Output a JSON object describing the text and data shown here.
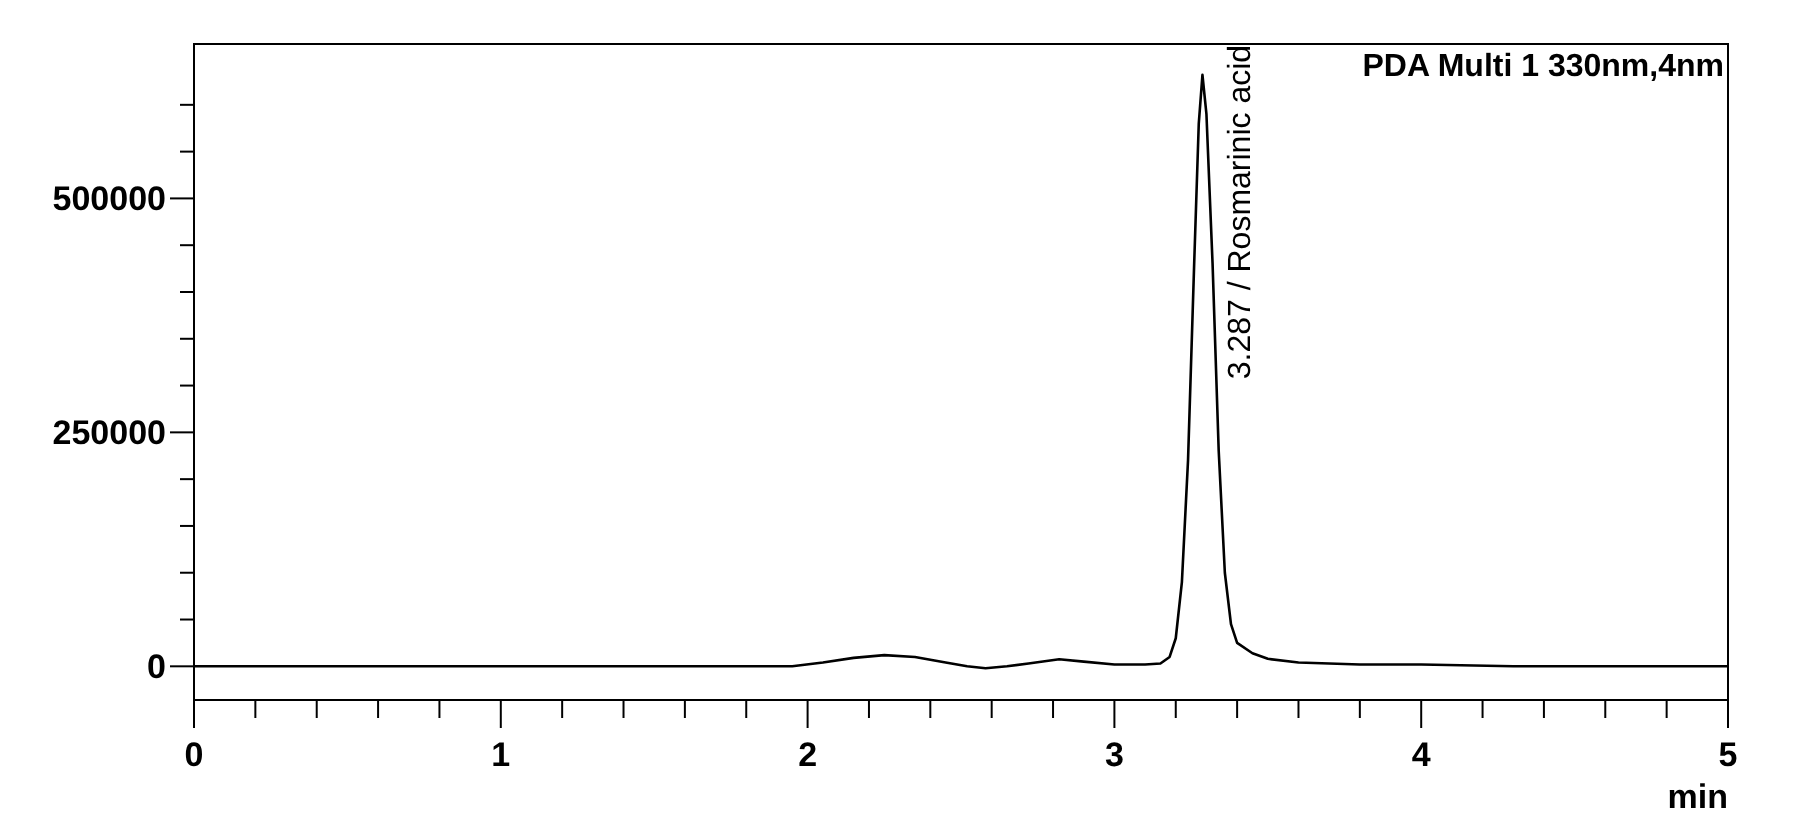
{
  "chart_data": {
    "type": "line",
    "title": "PDA Multi 1 330nm,4nm",
    "xlabel": "min",
    "x": [
      0,
      1.9,
      1.95,
      2.05,
      2.15,
      2.25,
      2.35,
      2.45,
      2.52,
      2.58,
      2.65,
      2.72,
      2.82,
      2.9,
      3.0,
      3.1,
      3.15,
      3.18,
      3.2,
      3.22,
      3.24,
      3.26,
      3.275,
      3.287,
      3.3,
      3.32,
      3.34,
      3.36,
      3.38,
      3.4,
      3.45,
      3.5,
      3.6,
      3.8,
      4.0,
      4.3,
      5
    ],
    "series": [
      {
        "color": "#000000",
        "values": [
          0,
          0,
          0,
          4000,
          9000,
          12000,
          10000,
          4000,
          0,
          -2000,
          0,
          3000,
          7500,
          5000,
          2000,
          2000,
          3000,
          10000,
          30000,
          90000,
          220000,
          430000,
          580000,
          632000,
          590000,
          430000,
          230000,
          100000,
          45000,
          25000,
          14000,
          8000,
          4000,
          2000,
          2000,
          0,
          0
        ]
      }
    ],
    "annotations": [
      {
        "text": "3.287 / Rosmarinic acid",
        "x": 3.287,
        "y": 632000
      }
    ],
    "xlim": [
      0,
      5
    ],
    "xticks": [
      0,
      {
        "value": 0.2,
        "label": null
      },
      {
        "value": 0.4,
        "label": null
      },
      {
        "value": 0.6,
        "label": null
      },
      {
        "value": 0.8,
        "label": null
      },
      1,
      {
        "value": 1.2,
        "label": null
      },
      {
        "value": 1.4,
        "label": null
      },
      {
        "value": 1.6,
        "label": null
      },
      {
        "value": 1.8,
        "label": null
      },
      2,
      {
        "value": 2.2,
        "label": null
      },
      {
        "value": 2.4,
        "label": null
      },
      {
        "value": 2.6,
        "label": null
      },
      {
        "value": 2.8,
        "label": null
      },
      3,
      {
        "value": 3.2,
        "label": null
      },
      {
        "value": 3.4,
        "label": null
      },
      {
        "value": 3.6,
        "label": null
      },
      {
        "value": 3.8,
        "label": null
      },
      4,
      {
        "value": 4.2,
        "label": null
      },
      {
        "value": 4.4,
        "label": null
      },
      {
        "value": 4.6,
        "label": null
      },
      {
        "value": 4.8,
        "label": null
      },
      5
    ],
    "ylim": [
      -36000,
      665000
    ],
    "yticks": [
      0,
      {
        "value": 50000,
        "label": null
      },
      {
        "value": 100000,
        "label": null
      },
      {
        "value": 150000,
        "label": null
      },
      {
        "value": 200000,
        "label": null
      },
      250000,
      {
        "value": 300000,
        "label": null
      },
      {
        "value": 350000,
        "label": null
      },
      {
        "value": 400000,
        "label": null
      },
      {
        "value": 450000,
        "label": null
      },
      500000,
      {
        "value": 550000,
        "label": null
      },
      {
        "value": 600000,
        "label": null
      }
    ],
    "grid": false,
    "marker": "none",
    "line_style": "solid"
  }
}
